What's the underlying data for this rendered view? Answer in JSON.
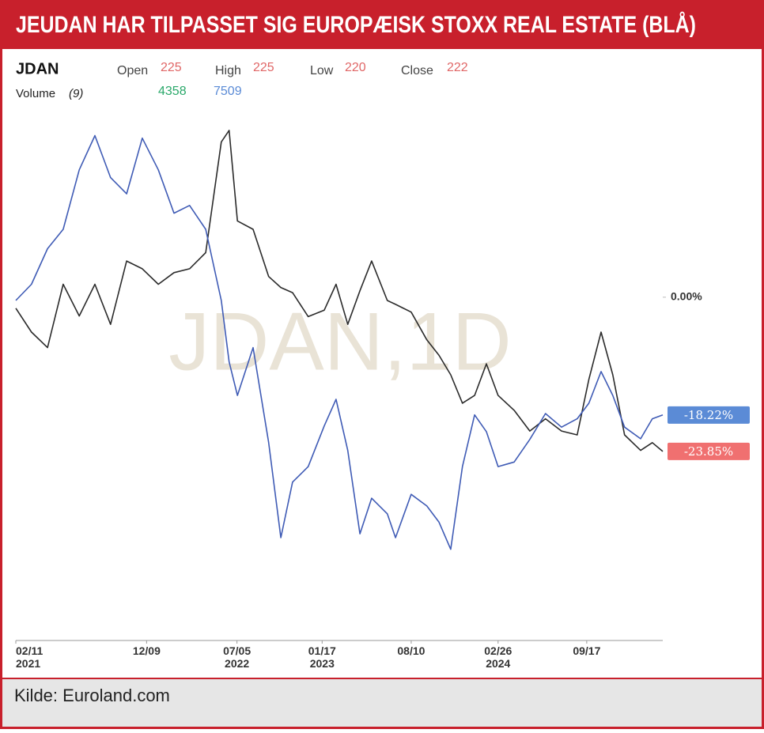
{
  "title": "JEUDAN HAR TILPASSET SIG EUROPÆISK STOXX REAL ESTATE (BLÅ)",
  "source": "Kilde: Euroland.com",
  "chart_data": {
    "type": "line",
    "symbol": "JDAN",
    "watermark": "JDAN,1D",
    "ohlc": {
      "open_label": "Open",
      "open": 225,
      "high_label": "High",
      "high": 225,
      "low_label": "Low",
      "low": 220,
      "close_label": "Close",
      "close": 222
    },
    "volume_label": "Volume",
    "volume_period": "(9)",
    "volume_values": [
      4358,
      7509
    ],
    "volume_colors": [
      "#2aa86a",
      "#5b8bd6"
    ],
    "x": [
      "2021-02-11",
      "2021-03-19",
      "2021-04-25",
      "2021-05-31",
      "2021-07-07",
      "2021-08-12",
      "2021-09-17",
      "2021-10-24",
      "2021-11-29",
      "2022-01-05",
      "2022-02-10",
      "2022-03-18",
      "2022-04-24",
      "2022-05-30",
      "2022-06-17",
      "2022-07-06",
      "2022-08-11",
      "2022-09-16",
      "2022-10-14",
      "2022-11-10",
      "2022-12-16",
      "2023-01-22",
      "2023-02-18",
      "2023-03-17",
      "2023-04-14",
      "2023-05-11",
      "2023-06-16",
      "2023-07-05",
      "2023-08-10",
      "2023-09-15",
      "2023-10-13",
      "2023-11-09",
      "2023-12-06",
      "2024-01-03",
      "2024-01-30",
      "2024-02-26",
      "2024-04-03",
      "2024-05-09",
      "2024-06-14",
      "2024-07-21",
      "2024-08-26",
      "2024-09-22",
      "2024-10-20",
      "2024-11-16",
      "2024-12-13",
      "2025-01-19",
      "2025-02-15",
      "2025-03-11"
    ],
    "xlim": [
      "2021-02-11",
      "2025-03-11"
    ],
    "xticks": [
      {
        "value": "2021-02-11",
        "label": "02/11\n2021"
      },
      {
        "value": "2021-12-09",
        "label": "12/09"
      },
      {
        "value": "2022-07-05",
        "label": "07/05\n2022"
      },
      {
        "value": "2023-01-17",
        "label": "01/17\n2023"
      },
      {
        "value": "2023-08-10",
        "label": "08/10"
      },
      {
        "value": "2024-02-26",
        "label": "02/26\n2024"
      },
      {
        "value": "2024-09-17",
        "label": "09/17"
      }
    ],
    "ylim": [
      -53.1,
      36.8
    ],
    "yticks": [
      {
        "value": 0,
        "label": "0.00%"
      }
    ],
    "grid": false,
    "series": [
      {
        "color": "#2b2b2b",
        "label_color": "#f07070",
        "values": [
          -1.7,
          -5.4,
          -7.8,
          2.0,
          -2.9,
          2.0,
          -4.2,
          5.6,
          4.4,
          2.0,
          3.8,
          4.4,
          6.9,
          24.0,
          25.8,
          11.8,
          10.5,
          3.2,
          1.5,
          0.7,
          -3.0,
          -2.0,
          2.0,
          -4.2,
          1.0,
          5.6,
          -0.5,
          -1.1,
          -2.3,
          -6.6,
          -9.0,
          -12.0,
          -16.4,
          -15.2,
          -10.3,
          -15.2,
          -17.5,
          -20.7,
          -18.8,
          -20.7,
          -21.3,
          -12.7,
          -5.4,
          -12.0,
          -21.3,
          -23.7,
          -22.5,
          -23.85
        ],
        "value_labels": [
          null,
          null,
          null,
          null,
          null,
          null,
          null,
          null,
          null,
          null,
          null,
          null,
          null,
          null,
          null,
          null,
          null,
          null,
          null,
          null,
          null,
          null,
          null,
          null,
          null,
          null,
          null,
          null,
          null,
          null,
          null,
          null,
          null,
          null,
          null,
          null,
          null,
          null,
          null,
          null,
          null,
          null,
          null,
          null,
          null,
          null,
          null,
          "-23.85%"
        ]
      },
      {
        "color": "#3f5bb5",
        "label_color": "#5b8bd6",
        "values": [
          -0.5,
          2.0,
          7.5,
          10.5,
          19.7,
          25.0,
          18.5,
          16.0,
          24.6,
          19.7,
          13.0,
          14.2,
          10.5,
          -0.5,
          -10.0,
          -15.2,
          -7.8,
          -22.5,
          -37.2,
          -28.6,
          -26.2,
          -19.9,
          -15.8,
          -23.7,
          -36.6,
          -31.1,
          -33.5,
          -37.2,
          -30.5,
          -32.3,
          -34.8,
          -39.0,
          -26.2,
          -18.2,
          -20.8,
          -26.2,
          -25.5,
          -22.0,
          -18.0,
          -20.1,
          -18.8,
          -16.4,
          -11.5,
          -15.2,
          -20.1,
          -21.9,
          -18.8,
          -18.22
        ],
        "value_labels": [
          null,
          null,
          null,
          null,
          null,
          null,
          null,
          null,
          null,
          null,
          null,
          null,
          null,
          null,
          null,
          null,
          null,
          null,
          null,
          null,
          null,
          null,
          null,
          null,
          null,
          null,
          null,
          null,
          null,
          null,
          null,
          null,
          null,
          null,
          null,
          null,
          null,
          null,
          null,
          null,
          null,
          null,
          null,
          null,
          null,
          null,
          null,
          "-18.22%"
        ]
      }
    ]
  }
}
